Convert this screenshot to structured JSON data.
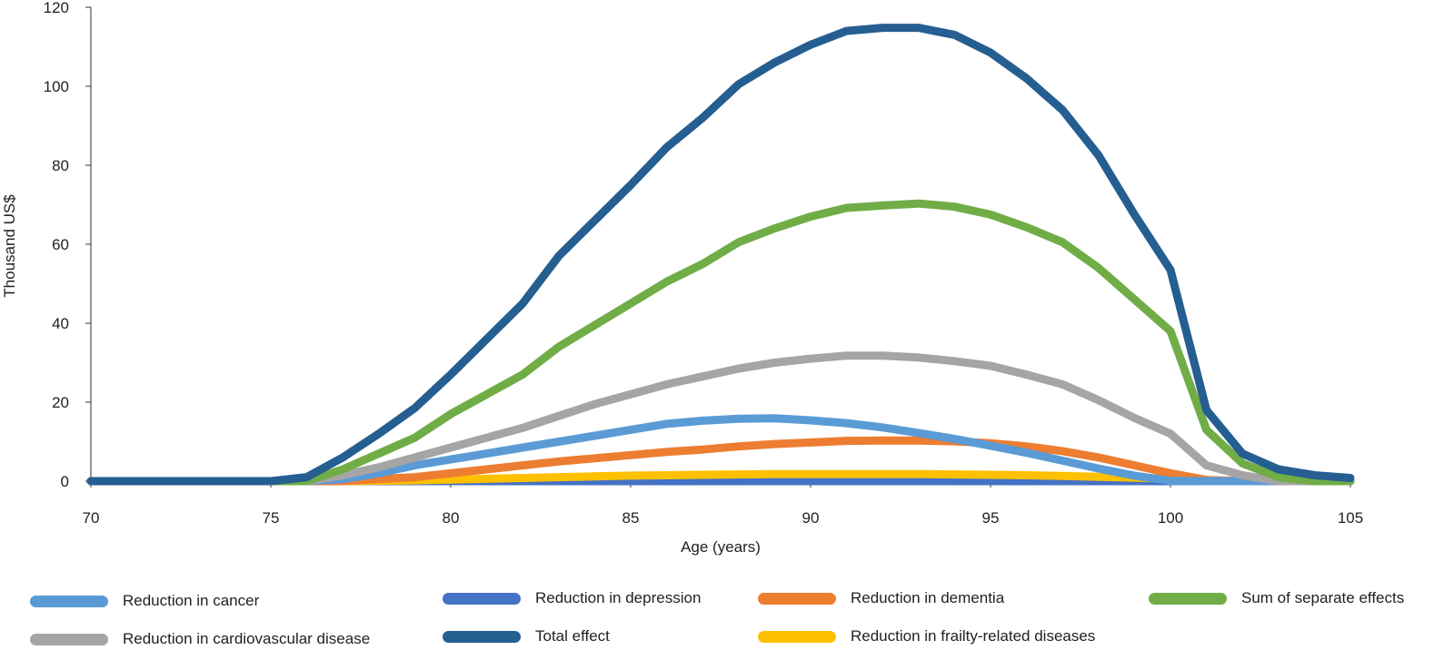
{
  "chart_data": {
    "type": "line",
    "xlabel": "Age (years)",
    "ylabel": "Thousand US$",
    "xlim": [
      70,
      105
    ],
    "ylim": [
      0,
      120
    ],
    "x_ticks": [
      70,
      75,
      80,
      85,
      90,
      95,
      100,
      105
    ],
    "y_ticks": [
      0,
      20,
      40,
      60,
      80,
      100,
      120
    ],
    "grid": false,
    "legend_position": "bottom",
    "x": [
      70,
      71,
      72,
      73,
      74,
      75,
      76,
      77,
      78,
      79,
      80,
      81,
      82,
      83,
      84,
      85,
      86,
      87,
      88,
      89,
      90,
      91,
      92,
      93,
      94,
      95,
      96,
      97,
      98,
      99,
      100,
      101,
      102,
      103,
      104,
      105
    ],
    "series": [
      {
        "name": "Reduction in depression",
        "color": "#4472c4",
        "values": [
          0,
          0,
          0,
          0,
          0,
          0,
          0,
          0,
          0,
          0,
          0,
          0,
          0,
          0,
          0,
          0,
          0,
          0,
          0,
          0,
          0,
          0,
          0,
          0,
          0,
          0,
          0,
          0,
          0,
          0,
          0,
          0,
          0,
          0,
          0,
          0
        ]
      },
      {
        "name": "Reduction in frailty-related diseases",
        "color": "#ffc000",
        "values": [
          0,
          0,
          0,
          0,
          0,
          0,
          0,
          0,
          0.1,
          0.2,
          0.4,
          0.6,
          0.8,
          1,
          1.2,
          1.4,
          1.5,
          1.6,
          1.7,
          1.8,
          1.8,
          1.8,
          1.8,
          1.8,
          1.7,
          1.6,
          1.5,
          1.3,
          1.1,
          0.9,
          0.6,
          0.2,
          0,
          0,
          0,
          0
        ]
      },
      {
        "name": "Reduction in dementia",
        "color": "#ed7d31",
        "values": [
          0,
          0,
          0,
          0,
          0,
          0,
          0,
          0,
          0.5,
          1,
          2,
          3,
          4,
          5,
          5.8,
          6.6,
          7.4,
          8,
          8.8,
          9.4,
          9.8,
          10.2,
          10.3,
          10.3,
          10.1,
          9.6,
          8.8,
          7.6,
          6,
          4,
          2,
          0.3,
          0,
          0,
          0,
          0
        ]
      },
      {
        "name": "Reduction in cancer",
        "color": "#5b9bd5",
        "values": [
          0,
          0,
          0,
          0,
          0,
          0,
          0,
          0.5,
          2,
          4,
          5.5,
          7,
          8.5,
          10,
          11.5,
          13,
          14.5,
          15.3,
          15.8,
          15.9,
          15.4,
          14.7,
          13.6,
          12.2,
          10.7,
          9,
          7.2,
          5.2,
          3.2,
          1.4,
          0.1,
          0,
          0,
          0,
          0,
          0
        ]
      },
      {
        "name": "Reduction in cardiovascular disease",
        "color": "#a5a5a5",
        "values": [
          0,
          0,
          0,
          0,
          0,
          0,
          0,
          1.5,
          3.5,
          6,
          8.5,
          11,
          13.5,
          16.5,
          19.5,
          22,
          24.5,
          26.5,
          28.5,
          30,
          31,
          31.8,
          31.8,
          31.3,
          30.4,
          29.2,
          27,
          24.5,
          20.5,
          16,
          12,
          4,
          1.5,
          0,
          0,
          0
        ]
      },
      {
        "name": "Sum of separate effects",
        "color": "#70ad47",
        "values": [
          0,
          0,
          0,
          0,
          0,
          0,
          0,
          3,
          7,
          11,
          17,
          22,
          27,
          34,
          39.5,
          45,
          50.5,
          55,
          60.5,
          64,
          67,
          69.2,
          69.8,
          70.3,
          69.5,
          67.5,
          64.3,
          60.5,
          54,
          46,
          38,
          13,
          4.5,
          1,
          0,
          0
        ]
      },
      {
        "name": "Total effect",
        "color": "#255e91",
        "values": [
          0,
          0,
          0,
          0,
          0,
          0,
          1,
          6,
          12,
          18.5,
          27,
          36,
          45,
          57,
          66,
          75,
          84.5,
          92,
          100.5,
          106,
          110.5,
          114,
          114.8,
          114.8,
          113,
          108.5,
          102,
          94,
          82.5,
          67.5,
          53.5,
          18,
          7,
          3,
          1.5,
          0.8
        ]
      }
    ],
    "legend": [
      {
        "label": "Reduction in cancer",
        "color": "#5b9bd5"
      },
      {
        "label": "Reduction in depression",
        "color": "#4472c4"
      },
      {
        "label": "Reduction in dementia",
        "color": "#ed7d31"
      },
      {
        "label": "Sum of separate effects",
        "color": "#70ad47"
      },
      {
        "label": "Reduction in cardiovascular disease",
        "color": "#a5a5a5"
      },
      {
        "label": "Total effect",
        "color": "#255e91"
      },
      {
        "label": "Reduction in frailty-related diseases",
        "color": "#ffc000"
      }
    ]
  }
}
